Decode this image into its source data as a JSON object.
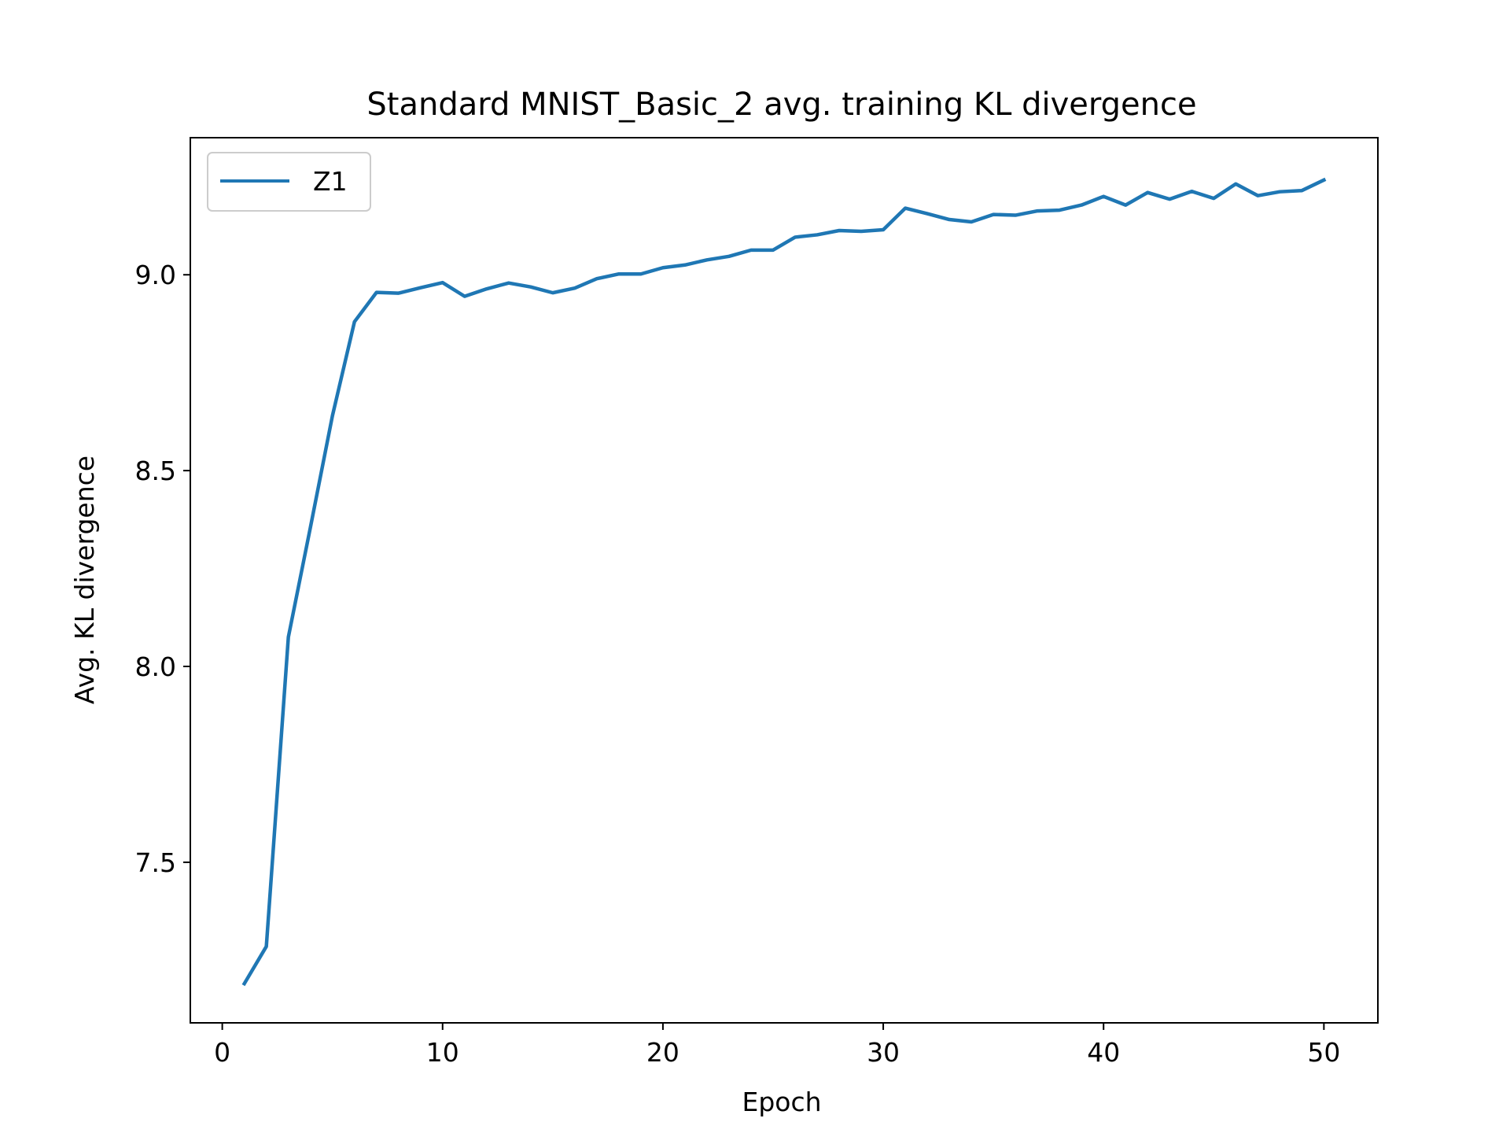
{
  "chart_data": {
    "type": "line",
    "title": "Standard MNIST_Basic_2 avg. training KL divergence",
    "xlabel": "Epoch",
    "ylabel": "Avg. KL divergence",
    "xlim": [
      -1.45,
      52.45
    ],
    "ylim": [
      7.09,
      9.35
    ],
    "xticks": [
      0,
      10,
      20,
      30,
      40,
      50
    ],
    "yticks": [
      7.5,
      8.0,
      8.5,
      9.0
    ],
    "xtick_labels": [
      "0",
      "10",
      "20",
      "30",
      "40",
      "50"
    ],
    "ytick_labels": [
      "7.5",
      "8.0",
      "8.5",
      "9.0"
    ],
    "grid": false,
    "legend_position": "upper-left",
    "series": [
      {
        "name": "Z1",
        "color": "#1f77b4",
        "x": [
          1,
          2,
          3,
          4,
          5,
          6,
          7,
          8,
          9,
          10,
          11,
          12,
          13,
          14,
          15,
          16,
          17,
          18,
          19,
          20,
          21,
          22,
          23,
          24,
          25,
          26,
          27,
          28,
          29,
          30,
          31,
          32,
          33,
          34,
          35,
          36,
          37,
          38,
          39,
          40,
          41,
          42,
          43,
          44,
          45,
          46,
          47,
          48,
          49,
          50
        ],
        "values": [
          7.19,
          7.285,
          8.075,
          8.355,
          8.64,
          8.88,
          8.955,
          8.953,
          8.967,
          8.98,
          8.945,
          8.964,
          8.979,
          8.969,
          8.954,
          8.966,
          8.99,
          9.002,
          9.002,
          9.018,
          9.025,
          9.038,
          9.047,
          9.063,
          9.063,
          9.096,
          9.102,
          9.113,
          9.111,
          9.115,
          9.17,
          9.156,
          9.141,
          9.135,
          9.154,
          9.152,
          9.163,
          9.165,
          9.178,
          9.2,
          9.178,
          9.21,
          9.193,
          9.213,
          9.195,
          9.232,
          9.202,
          9.212,
          9.215,
          9.242
        ]
      }
    ]
  }
}
